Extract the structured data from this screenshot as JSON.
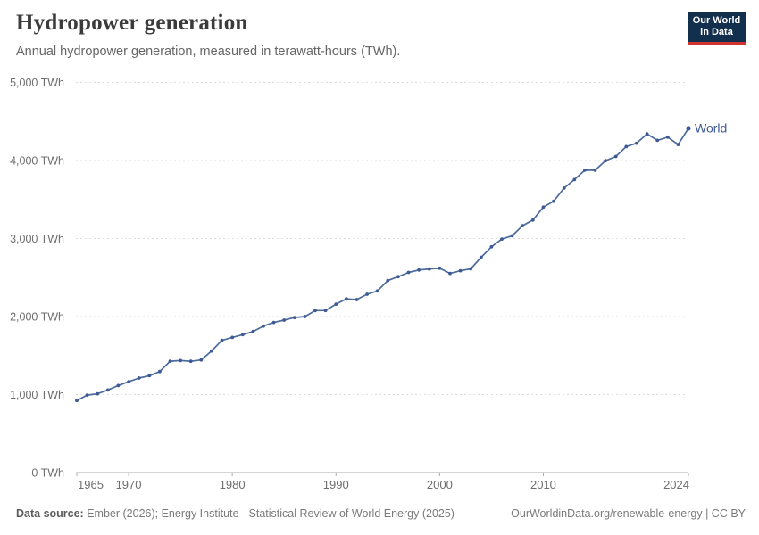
{
  "header": {
    "title": "Hydropower generation",
    "subtitle": "Annual hydropower generation, measured in terawatt-hours (TWh).",
    "logo": {
      "line1": "Our World",
      "line2": "in Data",
      "bg_color": "#132f4e",
      "bar_color": "#d0342c"
    }
  },
  "chart_data": {
    "type": "line",
    "title": "Hydropower generation",
    "unit": "TWh",
    "xlabel": "",
    "ylabel": "TWh",
    "xlim": [
      1965,
      2024
    ],
    "ylim": [
      0,
      5000
    ],
    "grid": "horizontal-dashed",
    "legend_position": "end-of-line",
    "x_ticks": [
      1965,
      1970,
      1980,
      1990,
      2000,
      2010,
      2024
    ],
    "x_tick_labels": [
      "1965",
      "1970",
      "1980",
      "1990",
      "2000",
      "2010",
      "2024"
    ],
    "y_ticks": [
      0,
      1000,
      2000,
      3000,
      4000,
      5000
    ],
    "y_tick_labels": [
      "0 TWh",
      "1,000 TWh",
      "2,000 TWh",
      "3,000 TWh",
      "4,000 TWh",
      "5,000 TWh"
    ],
    "series": [
      {
        "name": "World",
        "color": "#4c6a9c",
        "point_color": "#3d5a94",
        "label_color": "#3d5a94",
        "x": [
          1965,
          1966,
          1967,
          1968,
          1969,
          1970,
          1971,
          1972,
          1973,
          1974,
          1975,
          1976,
          1977,
          1978,
          1979,
          1980,
          1981,
          1982,
          1983,
          1984,
          1985,
          1986,
          1987,
          1988,
          1989,
          1990,
          1991,
          1992,
          1993,
          1994,
          1995,
          1996,
          1997,
          1998,
          1999,
          2000,
          2001,
          2002,
          2003,
          2004,
          2005,
          2006,
          2007,
          2008,
          2009,
          2010,
          2011,
          2012,
          2013,
          2014,
          2015,
          2016,
          2017,
          2018,
          2019,
          2020,
          2021,
          2022,
          2023,
          2024
        ],
        "values": [
          923,
          993,
          1010,
          1058,
          1116,
          1165,
          1211,
          1241,
          1295,
          1428,
          1436,
          1426,
          1443,
          1559,
          1695,
          1732,
          1768,
          1808,
          1878,
          1925,
          1954,
          1988,
          2000,
          2077,
          2078,
          2159,
          2226,
          2217,
          2286,
          2328,
          2462,
          2511,
          2566,
          2597,
          2610,
          2619,
          2553,
          2587,
          2611,
          2759,
          2894,
          2993,
          3035,
          3164,
          3237,
          3402,
          3479,
          3646,
          3756,
          3876,
          3875,
          3998,
          4051,
          4178,
          4222,
          4341,
          4258,
          4300,
          4204,
          4412
        ]
      }
    ]
  },
  "footer": {
    "source_label": "Data source:",
    "source_text": "Ember (2026); Energy Institute - Statistical Review of World Energy (2025)",
    "link_text": "OurWorldinData.org/renewable-energy | CC BY"
  }
}
